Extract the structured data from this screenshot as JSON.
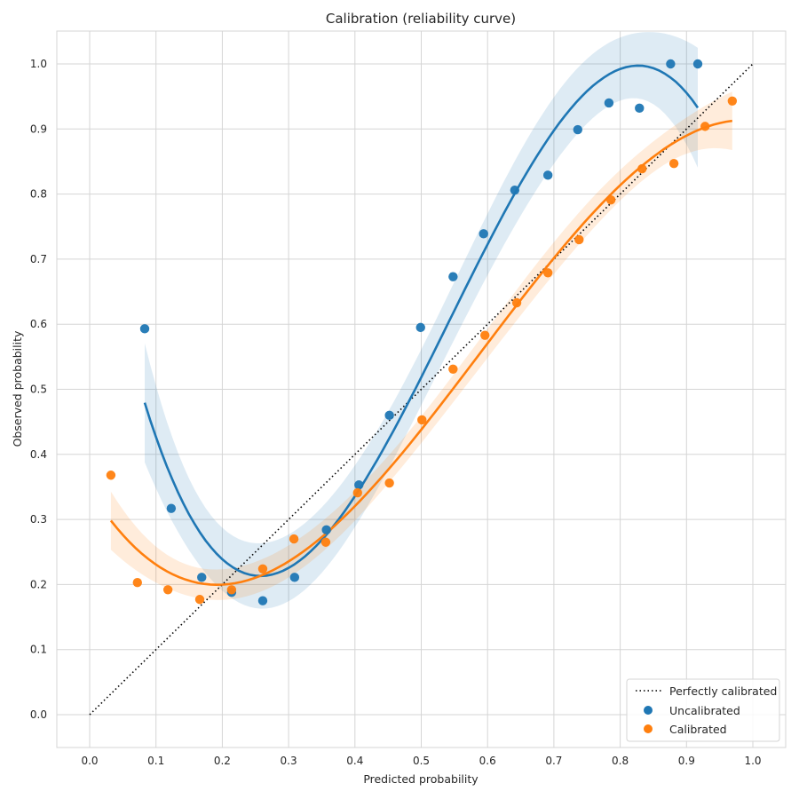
{
  "chart_data": {
    "type": "scatter",
    "title": "Calibration (reliability curve)",
    "xlabel": "Predicted probability",
    "ylabel": "Observed probability",
    "xlim": [
      -0.05,
      1.05
    ],
    "ylim": [
      -0.05,
      1.05
    ],
    "xticks": [
      "0.0",
      "0.1",
      "0.2",
      "0.3",
      "0.4",
      "0.5",
      "0.6",
      "0.7",
      "0.8",
      "0.9",
      "1.0"
    ],
    "yticks": [
      "0.0",
      "0.1",
      "0.2",
      "0.3",
      "0.4",
      "0.5",
      "0.6",
      "0.7",
      "0.8",
      "0.9",
      "1.0"
    ],
    "grid": true,
    "legend_position": "bottom-right",
    "reference_line": {
      "name": "Perfectly calibrated",
      "x": [
        0,
        1
      ],
      "y": [
        0,
        1
      ],
      "color": "#000000",
      "style": "dotted"
    },
    "series": [
      {
        "name": "Uncalibrated",
        "color": "#1f77b4",
        "fit": "cubic regression with confidence band",
        "x": [
          0.083,
          0.123,
          0.169,
          0.214,
          0.261,
          0.309,
          0.357,
          0.406,
          0.452,
          0.499,
          0.548,
          0.594,
          0.641,
          0.691,
          0.736,
          0.783,
          0.829,
          0.876,
          0.917
        ],
        "y": [
          0.593,
          0.317,
          0.211,
          0.188,
          0.175,
          0.211,
          0.284,
          0.353,
          0.46,
          0.595,
          0.673,
          0.739,
          0.806,
          0.829,
          0.899,
          0.94,
          0.932,
          1.0,
          1.0
        ]
      },
      {
        "name": "Calibrated",
        "color": "#ff7f0e",
        "fit": "cubic regression with confidence band",
        "x": [
          0.032,
          0.072,
          0.118,
          0.166,
          0.214,
          0.261,
          0.308,
          0.356,
          0.404,
          0.452,
          0.501,
          0.548,
          0.596,
          0.644,
          0.691,
          0.738,
          0.786,
          0.833,
          0.881,
          0.928,
          0.969
        ],
        "y": [
          0.368,
          0.203,
          0.192,
          0.177,
          0.192,
          0.224,
          0.27,
          0.265,
          0.341,
          0.356,
          0.453,
          0.531,
          0.583,
          0.633,
          0.679,
          0.73,
          0.791,
          0.839,
          0.847,
          0.904,
          0.943
        ]
      }
    ]
  }
}
